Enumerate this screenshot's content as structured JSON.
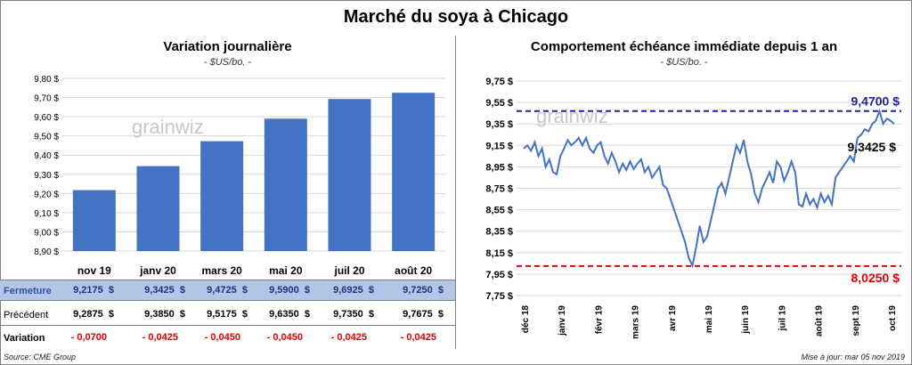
{
  "title": "Marché du soya à Chicago",
  "left": {
    "title": "Variation  journalière",
    "subtitle": "- $US/bo. -",
    "watermark": "grainwiz",
    "table": {
      "rows": [
        {
          "label": "Fermeture",
          "values": [
            "9,2175  $",
            "9,3425  $",
            "9,4725  $",
            "9,5900  $",
            "9,6925  $",
            "9,7250  $"
          ]
        },
        {
          "label": "Précédent",
          "values": [
            "9,2875  $",
            "9,3850  $",
            "9,5175  $",
            "9,6350  $",
            "9,7350  $",
            "9,7675  $"
          ]
        },
        {
          "label": "Variation",
          "values": [
            "- 0,0700",
            "- 0,0425",
            "- 0,0450",
            "- 0,0450",
            "- 0,0425",
            "- 0,0425"
          ]
        }
      ]
    },
    "source": "Source: CME Group"
  },
  "right": {
    "title": "Comportement  échéance immédiate depuis 1 an",
    "subtitle": "- $US/bo. -",
    "watermark": "grainwiz",
    "update": "Mise à jour: mar 05 nov 2019"
  },
  "colors": {
    "bar": "#4472c4",
    "line": "#4472c4",
    "high": "#2020a0",
    "low": "#e00000"
  },
  "chart_data": [
    {
      "type": "bar",
      "categories": [
        "nov 19",
        "janv 20",
        "mars 20",
        "mai 20",
        "juil 20",
        "août 20"
      ],
      "values": [
        9.2175,
        9.3425,
        9.4725,
        9.59,
        9.6925,
        9.725
      ],
      "ylim": [
        8.9,
        9.8
      ],
      "yticks": [
        "8,90 $",
        "9,00 $",
        "9,10 $",
        "9,20 $",
        "9,30 $",
        "9,40 $",
        "9,50 $",
        "9,60 $",
        "9,70 $",
        "9,80 $"
      ],
      "grid": true
    },
    {
      "type": "line",
      "xlabels": [
        "déc 18",
        "janv 19",
        "févr 19",
        "mars 19",
        "avr 19",
        "mai 19",
        "juin 19",
        "juil 19",
        "août 19",
        "sept 19",
        "oct 19"
      ],
      "ylim": [
        7.75,
        9.75
      ],
      "yticks": [
        "7,75 $",
        "7,95 $",
        "8,15 $",
        "8,35 $",
        "8,55 $",
        "8,75 $",
        "8,95 $",
        "9,15 $",
        "9,35 $",
        "9,55 $",
        "9,75 $"
      ],
      "high": {
        "value": 9.47,
        "label": "9,4700  $"
      },
      "low": {
        "value": 8.025,
        "label": "8,0250  $"
      },
      "last": {
        "value": 9.3425,
        "label": "9,3425 $"
      },
      "values": [
        9.12,
        9.15,
        9.1,
        9.18,
        9.05,
        9.12,
        8.95,
        9.02,
        8.9,
        8.88,
        9.05,
        9.12,
        9.2,
        9.15,
        9.18,
        9.22,
        9.15,
        9.22,
        9.12,
        9.08,
        9.15,
        9.18,
        9.05,
        8.98,
        9.08,
        9.0,
        8.9,
        8.98,
        8.92,
        9.0,
        8.93,
        8.98,
        9.02,
        8.9,
        8.95,
        8.85,
        8.9,
        8.95,
        8.78,
        8.75,
        8.65,
        8.55,
        8.45,
        8.35,
        8.25,
        8.1,
        8.03,
        8.2,
        8.4,
        8.25,
        8.3,
        8.45,
        8.6,
        8.75,
        8.8,
        8.7,
        8.85,
        9.0,
        9.15,
        9.08,
        9.2,
        9.0,
        8.88,
        8.7,
        8.62,
        8.75,
        8.82,
        8.9,
        8.8,
        9.0,
        8.95,
        8.82,
        8.9,
        9.0,
        8.9,
        8.6,
        8.58,
        8.7,
        8.6,
        8.65,
        8.57,
        8.7,
        8.62,
        8.68,
        8.6,
        8.85,
        8.9,
        8.95,
        9.0,
        9.05,
        9.0,
        9.22,
        9.25,
        9.3,
        9.28,
        9.35,
        9.38,
        9.47,
        9.35,
        9.4,
        9.38,
        9.35
      ]
    }
  ]
}
